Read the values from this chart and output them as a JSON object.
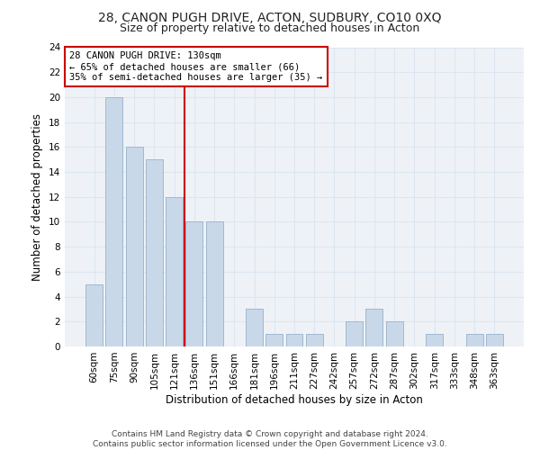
{
  "title": "28, CANON PUGH DRIVE, ACTON, SUDBURY, CO10 0XQ",
  "subtitle": "Size of property relative to detached houses in Acton",
  "xlabel": "Distribution of detached houses by size in Acton",
  "ylabel": "Number of detached properties",
  "categories": [
    "60sqm",
    "75sqm",
    "90sqm",
    "105sqm",
    "121sqm",
    "136sqm",
    "151sqm",
    "166sqm",
    "181sqm",
    "196sqm",
    "211sqm",
    "227sqm",
    "242sqm",
    "257sqm",
    "272sqm",
    "287sqm",
    "302sqm",
    "317sqm",
    "333sqm",
    "348sqm",
    "363sqm"
  ],
  "values": [
    5,
    20,
    16,
    15,
    12,
    10,
    10,
    0,
    3,
    1,
    1,
    1,
    0,
    2,
    3,
    2,
    0,
    1,
    0,
    1,
    1
  ],
  "bar_color": "#c8d8e8",
  "bar_edgecolor": "#a0b8d0",
  "vline_color": "#cc0000",
  "annotation_text": "28 CANON PUGH DRIVE: 130sqm\n← 65% of detached houses are smaller (66)\n35% of semi-detached houses are larger (35) →",
  "annotation_box_color": "#cc0000",
  "ylim": [
    0,
    24
  ],
  "yticks": [
    0,
    2,
    4,
    6,
    8,
    10,
    12,
    14,
    16,
    18,
    20,
    22,
    24
  ],
  "grid_color": "#dce6f0",
  "background_color": "#eef2f7",
  "footer": "Contains HM Land Registry data © Crown copyright and database right 2024.\nContains public sector information licensed under the Open Government Licence v3.0.",
  "title_fontsize": 10,
  "subtitle_fontsize": 9,
  "xlabel_fontsize": 8.5,
  "ylabel_fontsize": 8.5,
  "tick_fontsize": 7.5,
  "annotation_fontsize": 7.5,
  "footer_fontsize": 6.5
}
